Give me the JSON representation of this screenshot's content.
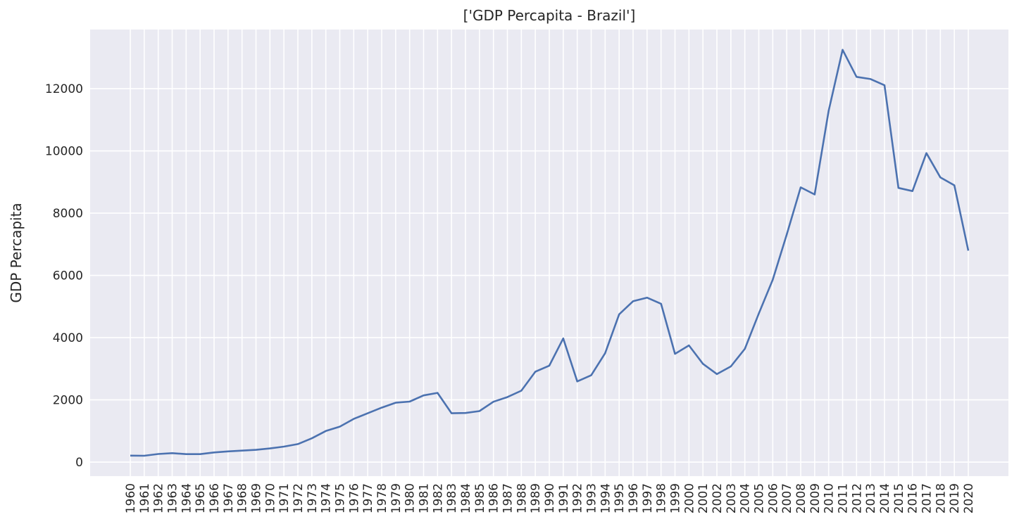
{
  "chart_data": {
    "type": "line",
    "title": "['GDP Percapita - Brazil']",
    "xlabel": "",
    "ylabel": "GDP Percapita",
    "x": [
      "1960",
      "1961",
      "1962",
      "1963",
      "1964",
      "1965",
      "1966",
      "1967",
      "1968",
      "1969",
      "1970",
      "1971",
      "1972",
      "1973",
      "1974",
      "1975",
      "1976",
      "1977",
      "1978",
      "1979",
      "1980",
      "1981",
      "1982",
      "1983",
      "1984",
      "1985",
      "1986",
      "1987",
      "1988",
      "1989",
      "1990",
      "1991",
      "1992",
      "1993",
      "1994",
      "1995",
      "1996",
      "1997",
      "1998",
      "1999",
      "2000",
      "2001",
      "2002",
      "2003",
      "2004",
      "2005",
      "2006",
      "2007",
      "2008",
      "2009",
      "2010",
      "2011",
      "2012",
      "2013",
      "2014",
      "2015",
      "2016",
      "2017",
      "2018",
      "2019",
      "2020"
    ],
    "series": [
      {
        "values": [
          210,
          205,
          262,
          289,
          258,
          258,
          312,
          345,
          371,
          395,
          440,
          500,
          580,
          765,
          1000,
          1140,
          1390,
          1570,
          1750,
          1910,
          1945,
          2145,
          2225,
          1570,
          1580,
          1640,
          1940,
          2090,
          2295,
          2905,
          3100,
          3975,
          2595,
          2790,
          3500,
          4750,
          5170,
          5285,
          5090,
          3480,
          3750,
          3160,
          2830,
          3075,
          3640,
          4775,
          5860,
          7315,
          8830,
          8600,
          11290,
          13250,
          12380,
          12310,
          12110,
          8810,
          8710,
          9930,
          9150,
          8895,
          6795
        ]
      }
    ],
    "yticks": [
      "0",
      "2000",
      "4000",
      "6000",
      "8000",
      "10000",
      "12000"
    ],
    "ylim": [
      -450,
      13900
    ],
    "grid": true,
    "colors": {
      "background": "#eaeaf2",
      "grid": "#ffffff",
      "line": "#4c72b0",
      "text": "#262626"
    }
  }
}
